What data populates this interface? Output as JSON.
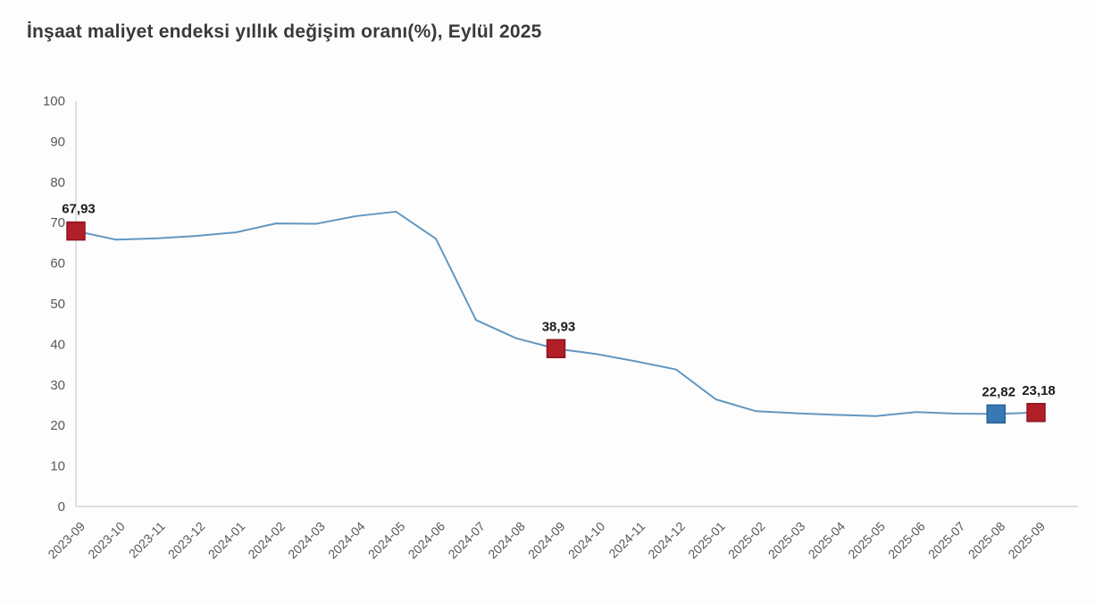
{
  "header": {
    "title": "İnşaat maliyet endeksi yıllık değişim oranı(%), Eylül 2025"
  },
  "chart_data": {
    "type": "line",
    "title": "İnşaat maliyet endeksi yıllık değişim oranı(%), Eylül 2025",
    "x": [
      "2023-09",
      "2023-10",
      "2023-11",
      "2023-12",
      "2024-01",
      "2024-02",
      "2024-03",
      "2024-04",
      "2024-05",
      "2024-06",
      "2024-07",
      "2024-08",
      "2024-09",
      "2024-10",
      "2024-11",
      "2024-12",
      "2025-01",
      "2025-02",
      "2025-03",
      "2025-04",
      "2025-05",
      "2025-06",
      "2025-07",
      "2025-08",
      "2025-09"
    ],
    "values": [
      67.93,
      65.8,
      66.1,
      66.7,
      67.6,
      69.8,
      69.7,
      71.6,
      72.7,
      66.0,
      46.0,
      41.5,
      38.93,
      37.6,
      35.8,
      33.8,
      26.4,
      23.5,
      23.0,
      22.6,
      22.3,
      23.3,
      22.9,
      22.82,
      23.18
    ],
    "ylim": [
      0,
      100
    ],
    "ytick_step": 10,
    "grid": false,
    "legend": "none",
    "annotations": [
      {
        "x": "2023-09",
        "index": 0,
        "value": 67.93,
        "label": "67,93",
        "marker": "red"
      },
      {
        "x": "2024-09",
        "index": 12,
        "value": 38.93,
        "label": "38,93",
        "marker": "red"
      },
      {
        "x": "2025-08",
        "index": 23,
        "value": 22.82,
        "label": "22,82",
        "marker": "blue"
      },
      {
        "x": "2025-09",
        "index": 24,
        "value": 23.18,
        "label": "23,18",
        "marker": "red"
      }
    ],
    "colors": {
      "line": "#6397c0",
      "marker_red": "#b11f29",
      "marker_red_border": "#8e1620",
      "marker_blue": "#3679b5",
      "marker_blue_border": "#2a5f94",
      "axis": "#d6d6d6",
      "tick_text": "#595959",
      "data_label_text": "#1c1c1c",
      "title_text": "#3a3a3a"
    }
  }
}
